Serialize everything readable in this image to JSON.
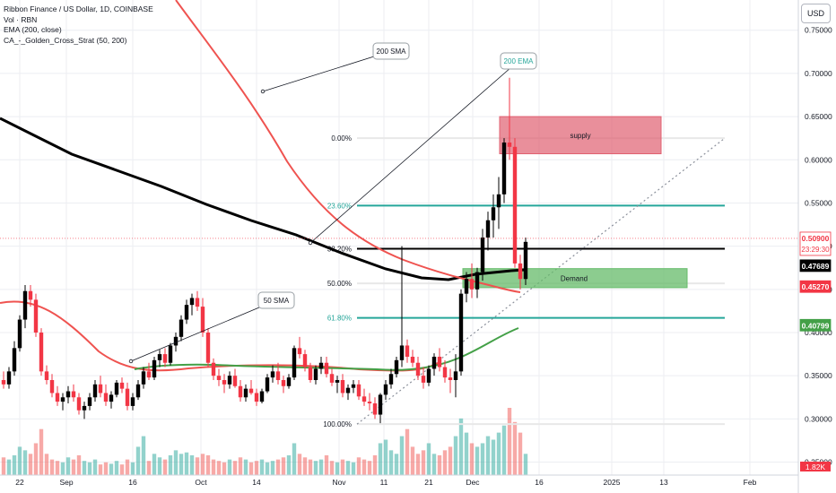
{
  "legend": {
    "title": "Ribbon Finance / US Dollar, 1D, COINBASE",
    "vol": "Vol · RBN",
    "ema": "EMA (200, close)",
    "strategy": "CA_-_Golden_Cross_Strat (50, 200)"
  },
  "currency_button": "USD",
  "colors": {
    "up": "#000000",
    "down": "#f23645",
    "sma50": "#ef5350",
    "ema200": "#000000",
    "golden": "#43a047",
    "fib_teal": "#26a69a",
    "supply": "#e06070",
    "demand": "#66bb6a",
    "grid": "#eceef2",
    "vol_up": "#26a69a",
    "vol_down": "#ef5350"
  },
  "chart_data": {
    "type": "candlestick",
    "symbol": "RBN/USD",
    "ylim": [
      0.235,
      0.785
    ],
    "y_ticks": [
      "0.75000",
      "0.70000",
      "0.65000",
      "0.60000",
      "0.55000",
      "0.50000",
      "0.45000",
      "0.40000",
      "0.35000",
      "0.30000",
      "0.25000"
    ],
    "x_ticks": [
      "22",
      "Sep",
      "16",
      "Oct",
      "14",
      "Nov",
      "11",
      "21",
      "Dec",
      "16",
      "2025",
      "13",
      "Feb"
    ],
    "price_labels": [
      {
        "text": "0.50900",
        "sub": "23:29:30",
        "style": "red-outline"
      },
      {
        "text": "0.47689",
        "style": "black"
      },
      {
        "text": "0.45270",
        "style": "red"
      },
      {
        "text": "0.40799",
        "style": "green"
      },
      {
        "text": "1.82K",
        "style": "red"
      }
    ],
    "fib_levels": [
      {
        "label": "0.00%",
        "price": 0.625,
        "color": "white"
      },
      {
        "label": "23.60%",
        "price": 0.547,
        "color": "teal"
      },
      {
        "label": "38.20%",
        "price": 0.497,
        "color": "black"
      },
      {
        "label": "50.00%",
        "price": 0.457,
        "color": "white"
      },
      {
        "label": "61.80%",
        "price": 0.417,
        "color": "teal"
      },
      {
        "label": "100.00%",
        "price": 0.294,
        "color": "white"
      }
    ],
    "zones": [
      {
        "label": "supply",
        "top": 0.65,
        "bottom": 0.607
      },
      {
        "label": "Demand",
        "top": 0.474,
        "bottom": 0.452
      }
    ],
    "annotations": [
      "200 SMA",
      "200 EMA",
      "50 SMA"
    ],
    "ohlc": [
      [
        0.345,
        0.355,
        0.335,
        0.34
      ],
      [
        0.34,
        0.36,
        0.335,
        0.355
      ],
      [
        0.355,
        0.39,
        0.35,
        0.382
      ],
      [
        0.382,
        0.42,
        0.378,
        0.415
      ],
      [
        0.415,
        0.455,
        0.405,
        0.448
      ],
      [
        0.448,
        0.455,
        0.43,
        0.438
      ],
      [
        0.438,
        0.445,
        0.395,
        0.4
      ],
      [
        0.4,
        0.405,
        0.35,
        0.355
      ],
      [
        0.355,
        0.362,
        0.34,
        0.345
      ],
      [
        0.345,
        0.352,
        0.325,
        0.33
      ],
      [
        0.33,
        0.338,
        0.315,
        0.32
      ],
      [
        0.32,
        0.33,
        0.31,
        0.325
      ],
      [
        0.325,
        0.338,
        0.318,
        0.332
      ],
      [
        0.332,
        0.34,
        0.32,
        0.325
      ],
      [
        0.325,
        0.33,
        0.305,
        0.31
      ],
      [
        0.31,
        0.32,
        0.3,
        0.315
      ],
      [
        0.315,
        0.33,
        0.31,
        0.325
      ],
      [
        0.325,
        0.345,
        0.32,
        0.34
      ],
      [
        0.34,
        0.35,
        0.325,
        0.33
      ],
      [
        0.33,
        0.34,
        0.315,
        0.32
      ],
      [
        0.32,
        0.332,
        0.312,
        0.328
      ],
      [
        0.328,
        0.345,
        0.325,
        0.342
      ],
      [
        0.342,
        0.348,
        0.33,
        0.335
      ],
      [
        0.335,
        0.342,
        0.31,
        0.315
      ],
      [
        0.315,
        0.33,
        0.31,
        0.325
      ],
      [
        0.325,
        0.345,
        0.322,
        0.34
      ],
      [
        0.34,
        0.36,
        0.335,
        0.355
      ],
      [
        0.355,
        0.365,
        0.345,
        0.348
      ],
      [
        0.348,
        0.372,
        0.345,
        0.368
      ],
      [
        0.368,
        0.38,
        0.36,
        0.375
      ],
      [
        0.375,
        0.382,
        0.36,
        0.365
      ],
      [
        0.365,
        0.388,
        0.362,
        0.385
      ],
      [
        0.385,
        0.4,
        0.378,
        0.395
      ],
      [
        0.395,
        0.42,
        0.39,
        0.415
      ],
      [
        0.415,
        0.438,
        0.41,
        0.432
      ],
      [
        0.432,
        0.445,
        0.42,
        0.44
      ],
      [
        0.44,
        0.448,
        0.425,
        0.43
      ],
      [
        0.43,
        0.44,
        0.395,
        0.4
      ],
      [
        0.4,
        0.405,
        0.36,
        0.365
      ],
      [
        0.365,
        0.37,
        0.345,
        0.35
      ],
      [
        0.35,
        0.358,
        0.338,
        0.345
      ],
      [
        0.345,
        0.352,
        0.33,
        0.34
      ],
      [
        0.34,
        0.355,
        0.335,
        0.35
      ],
      [
        0.35,
        0.358,
        0.336,
        0.338
      ],
      [
        0.338,
        0.345,
        0.32,
        0.325
      ],
      [
        0.325,
        0.34,
        0.32,
        0.335
      ],
      [
        0.335,
        0.345,
        0.328,
        0.33
      ],
      [
        0.33,
        0.335,
        0.315,
        0.32
      ],
      [
        0.32,
        0.335,
        0.318,
        0.332
      ],
      [
        0.332,
        0.352,
        0.33,
        0.348
      ],
      [
        0.348,
        0.362,
        0.342,
        0.355
      ],
      [
        0.355,
        0.365,
        0.34,
        0.345
      ],
      [
        0.345,
        0.35,
        0.33,
        0.338
      ],
      [
        0.338,
        0.352,
        0.335,
        0.348
      ],
      [
        0.348,
        0.385,
        0.345,
        0.382
      ],
      [
        0.382,
        0.395,
        0.37,
        0.375
      ],
      [
        0.375,
        0.38,
        0.355,
        0.36
      ],
      [
        0.36,
        0.365,
        0.342,
        0.345
      ],
      [
        0.345,
        0.362,
        0.34,
        0.358
      ],
      [
        0.358,
        0.372,
        0.352,
        0.365
      ],
      [
        0.365,
        0.372,
        0.348,
        0.352
      ],
      [
        0.352,
        0.358,
        0.338,
        0.342
      ],
      [
        0.342,
        0.35,
        0.33,
        0.345
      ],
      [
        0.345,
        0.352,
        0.325,
        0.33
      ],
      [
        0.33,
        0.34,
        0.322,
        0.336
      ],
      [
        0.336,
        0.345,
        0.33,
        0.34
      ],
      [
        0.34,
        0.345,
        0.322,
        0.326
      ],
      [
        0.326,
        0.335,
        0.315,
        0.32
      ],
      [
        0.32,
        0.33,
        0.31,
        0.318
      ],
      [
        0.318,
        0.325,
        0.3,
        0.305
      ],
      [
        0.305,
        0.33,
        0.295,
        0.328
      ],
      [
        0.328,
        0.345,
        0.322,
        0.34
      ],
      [
        0.34,
        0.358,
        0.335,
        0.352
      ],
      [
        0.352,
        0.372,
        0.348,
        0.368
      ],
      [
        0.368,
        0.5,
        0.36,
        0.385
      ],
      [
        0.385,
        0.392,
        0.365,
        0.372
      ],
      [
        0.372,
        0.38,
        0.36,
        0.365
      ],
      [
        0.365,
        0.372,
        0.345,
        0.35
      ],
      [
        0.35,
        0.36,
        0.335,
        0.342
      ],
      [
        0.342,
        0.362,
        0.338,
        0.358
      ],
      [
        0.358,
        0.376,
        0.35,
        0.372
      ],
      [
        0.372,
        0.382,
        0.355,
        0.36
      ],
      [
        0.36,
        0.368,
        0.342,
        0.348
      ],
      [
        0.348,
        0.358,
        0.33,
        0.345
      ],
      [
        0.345,
        0.375,
        0.325,
        0.355
      ],
      [
        0.355,
        0.45,
        0.35,
        0.445
      ],
      [
        0.445,
        0.47,
        0.435,
        0.462
      ],
      [
        0.462,
        0.48,
        0.44,
        0.45
      ],
      [
        0.45,
        0.475,
        0.44,
        0.47
      ],
      [
        0.47,
        0.52,
        0.46,
        0.51
      ],
      [
        0.51,
        0.54,
        0.495,
        0.53
      ],
      [
        0.53,
        0.56,
        0.51,
        0.545
      ],
      [
        0.545,
        0.58,
        0.52,
        0.56
      ],
      [
        0.56,
        0.625,
        0.55,
        0.62
      ],
      [
        0.62,
        0.695,
        0.6,
        0.615
      ],
      [
        0.615,
        0.625,
        0.475,
        0.48
      ],
      [
        0.48,
        0.49,
        0.45,
        0.462
      ],
      [
        0.462,
        0.51,
        0.455,
        0.505
      ]
    ],
    "volume_raw": [
      0.25,
      0.22,
      0.28,
      0.4,
      0.35,
      0.3,
      0.45,
      0.65,
      0.3,
      0.22,
      0.2,
      0.18,
      0.25,
      0.22,
      0.28,
      0.2,
      0.18,
      0.22,
      0.15,
      0.18,
      0.16,
      0.2,
      0.15,
      0.22,
      0.18,
      0.4,
      0.55,
      0.2,
      0.3,
      0.25,
      0.22,
      0.28,
      0.35,
      0.3,
      0.32,
      0.28,
      0.25,
      0.3,
      0.28,
      0.22,
      0.2,
      0.18,
      0.22,
      0.2,
      0.25,
      0.22,
      0.18,
      0.2,
      0.22,
      0.18,
      0.2,
      0.22,
      0.25,
      0.28,
      0.45,
      0.3,
      0.25,
      0.22,
      0.2,
      0.22,
      0.28,
      0.2,
      0.18,
      0.22,
      0.2,
      0.18,
      0.25,
      0.22,
      0.2,
      0.28,
      0.45,
      0.5,
      0.35,
      0.3,
      0.55,
      0.65,
      0.4,
      0.3,
      0.35,
      0.45,
      0.3,
      0.28,
      0.35,
      0.4,
      0.55,
      0.8,
      0.6,
      0.45,
      0.4,
      0.45,
      0.55,
      0.5,
      0.6,
      0.7,
      0.95,
      0.75,
      0.6,
      0.3
    ]
  }
}
